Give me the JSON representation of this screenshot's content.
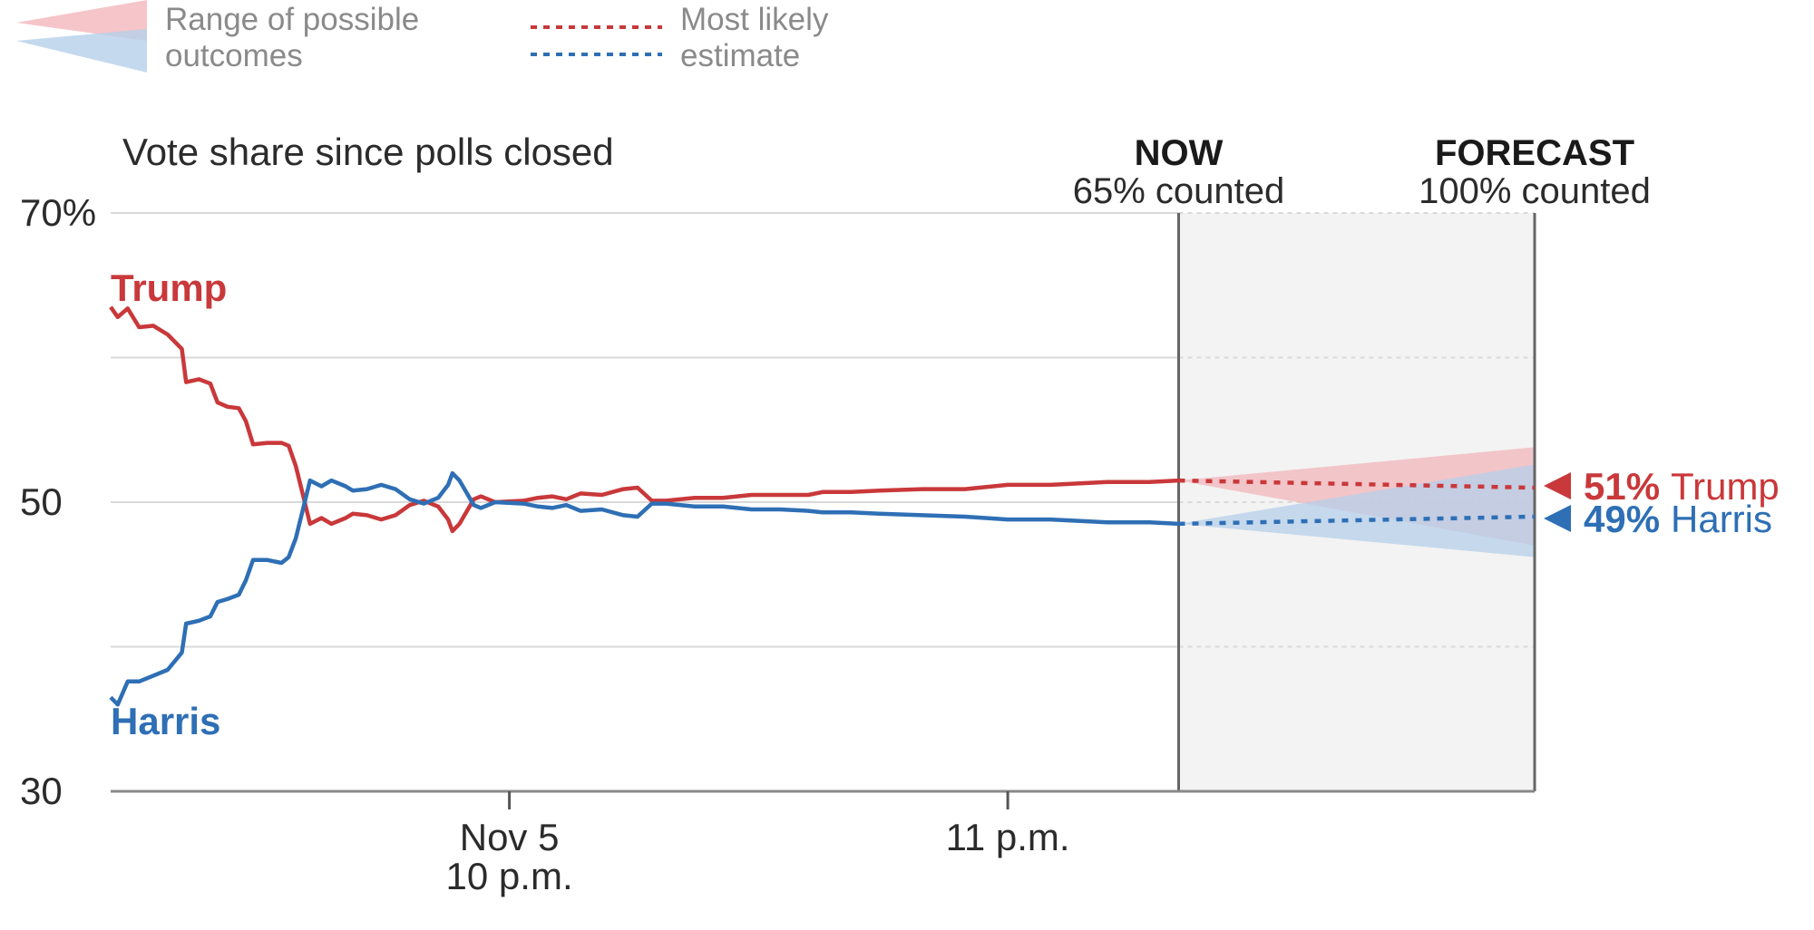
{
  "colors": {
    "trump": "#c9383a",
    "harris": "#2e6fb5",
    "trump_band": "#f2b6bb",
    "harris_band": "#b5cfea",
    "grid": "#d9d9d9",
    "axis": "#888888",
    "forecast_bg": "#f3f3f3"
  },
  "legend": {
    "range_line1": "Range of possible",
    "range_line2": "outcomes",
    "estimate_line1": "Most likely",
    "estimate_line2": "estimate"
  },
  "chart_data": {
    "type": "line",
    "title": "Vote share since polls closed",
    "ylim": [
      30,
      70
    ],
    "y_ticks": [
      {
        "value": 70,
        "label": "70%"
      },
      {
        "value": 50,
        "label": "50"
      },
      {
        "value": 30,
        "label": "30"
      }
    ],
    "x_ticks": [
      {
        "value": 0.28,
        "line1": "Nov 5",
        "line2": "10 p.m."
      },
      {
        "value": 0.63,
        "line1": "11 p.m.",
        "line2": ""
      }
    ],
    "grid": true,
    "phases": [
      {
        "value": 0.75,
        "head": "NOW",
        "sub": "65% counted"
      },
      {
        "value": 1.0,
        "head": "FORECAST",
        "sub": "100% counted"
      }
    ],
    "series": [
      {
        "name": "Trump",
        "key": "trump",
        "points": [
          [
            0,
            63.5
          ],
          [
            0.005,
            62.8
          ],
          [
            0.012,
            63.4
          ],
          [
            0.02,
            62.1
          ],
          [
            0.03,
            62.2
          ],
          [
            0.04,
            61.6
          ],
          [
            0.05,
            60.6
          ],
          [
            0.053,
            58.3
          ],
          [
            0.062,
            58.5
          ],
          [
            0.07,
            58.2
          ],
          [
            0.075,
            56.9
          ],
          [
            0.082,
            56.6
          ],
          [
            0.09,
            56.5
          ],
          [
            0.095,
            55.6
          ],
          [
            0.1,
            54.0
          ],
          [
            0.11,
            54.1
          ],
          [
            0.12,
            54.1
          ],
          [
            0.125,
            53.9
          ],
          [
            0.13,
            52.5
          ],
          [
            0.135,
            50.5
          ],
          [
            0.14,
            48.5
          ],
          [
            0.148,
            48.9
          ],
          [
            0.155,
            48.5
          ],
          [
            0.165,
            48.9
          ],
          [
            0.17,
            49.2
          ],
          [
            0.18,
            49.1
          ],
          [
            0.19,
            48.8
          ],
          [
            0.2,
            49.1
          ],
          [
            0.21,
            49.8
          ],
          [
            0.22,
            50.1
          ],
          [
            0.23,
            49.7
          ],
          [
            0.237,
            48.8
          ],
          [
            0.24,
            48.0
          ],
          [
            0.245,
            48.5
          ],
          [
            0.255,
            50.2
          ],
          [
            0.26,
            50.4
          ],
          [
            0.27,
            50.0
          ],
          [
            0.29,
            50.1
          ],
          [
            0.3,
            50.3
          ],
          [
            0.31,
            50.4
          ],
          [
            0.32,
            50.2
          ],
          [
            0.33,
            50.6
          ],
          [
            0.345,
            50.5
          ],
          [
            0.36,
            50.9
          ],
          [
            0.37,
            51.0
          ],
          [
            0.38,
            50.1
          ],
          [
            0.39,
            50.1
          ],
          [
            0.41,
            50.3
          ],
          [
            0.43,
            50.3
          ],
          [
            0.45,
            50.5
          ],
          [
            0.47,
            50.5
          ],
          [
            0.49,
            50.5
          ],
          [
            0.5,
            50.7
          ],
          [
            0.52,
            50.7
          ],
          [
            0.54,
            50.8
          ],
          [
            0.57,
            50.9
          ],
          [
            0.6,
            50.9
          ],
          [
            0.63,
            51.2
          ],
          [
            0.66,
            51.2
          ],
          [
            0.7,
            51.4
          ],
          [
            0.73,
            51.4
          ],
          [
            0.75,
            51.5
          ]
        ]
      },
      {
        "name": "Harris",
        "key": "harris",
        "points": [
          [
            0,
            36.5
          ],
          [
            0.005,
            36.0
          ],
          [
            0.012,
            37.6
          ],
          [
            0.02,
            37.6
          ],
          [
            0.03,
            38.0
          ],
          [
            0.04,
            38.4
          ],
          [
            0.05,
            39.6
          ],
          [
            0.053,
            41.6
          ],
          [
            0.062,
            41.8
          ],
          [
            0.07,
            42.1
          ],
          [
            0.075,
            43.1
          ],
          [
            0.082,
            43.3
          ],
          [
            0.09,
            43.6
          ],
          [
            0.095,
            44.6
          ],
          [
            0.1,
            46.0
          ],
          [
            0.11,
            46.0
          ],
          [
            0.12,
            45.8
          ],
          [
            0.125,
            46.2
          ],
          [
            0.13,
            47.5
          ],
          [
            0.135,
            49.5
          ],
          [
            0.14,
            51.5
          ],
          [
            0.148,
            51.1
          ],
          [
            0.155,
            51.5
          ],
          [
            0.165,
            51.1
          ],
          [
            0.17,
            50.8
          ],
          [
            0.18,
            50.9
          ],
          [
            0.19,
            51.2
          ],
          [
            0.2,
            50.9
          ],
          [
            0.21,
            50.2
          ],
          [
            0.22,
            49.9
          ],
          [
            0.23,
            50.3
          ],
          [
            0.237,
            51.2
          ],
          [
            0.24,
            52.0
          ],
          [
            0.245,
            51.5
          ],
          [
            0.255,
            49.8
          ],
          [
            0.26,
            49.6
          ],
          [
            0.27,
            50.0
          ],
          [
            0.29,
            49.9
          ],
          [
            0.3,
            49.7
          ],
          [
            0.31,
            49.6
          ],
          [
            0.32,
            49.8
          ],
          [
            0.33,
            49.4
          ],
          [
            0.345,
            49.5
          ],
          [
            0.36,
            49.1
          ],
          [
            0.37,
            49.0
          ],
          [
            0.38,
            49.9
          ],
          [
            0.39,
            49.9
          ],
          [
            0.41,
            49.7
          ],
          [
            0.43,
            49.7
          ],
          [
            0.45,
            49.5
          ],
          [
            0.47,
            49.5
          ],
          [
            0.49,
            49.4
          ],
          [
            0.5,
            49.3
          ],
          [
            0.52,
            49.3
          ],
          [
            0.54,
            49.2
          ],
          [
            0.57,
            49.1
          ],
          [
            0.6,
            49.0
          ],
          [
            0.63,
            48.8
          ],
          [
            0.66,
            48.8
          ],
          [
            0.7,
            48.6
          ],
          [
            0.73,
            48.6
          ],
          [
            0.75,
            48.5
          ]
        ]
      }
    ],
    "forecast": {
      "trump_estimate": 51.0,
      "harris_estimate": 49.0,
      "trump_range": [
        47.0,
        53.8
      ],
      "harris_range": [
        46.2,
        52.6
      ]
    },
    "end_labels": [
      {
        "key": "trump",
        "pct": "51%",
        "name": "Trump",
        "value": 51.0
      },
      {
        "key": "harris",
        "pct": "49%",
        "name": "Harris",
        "value": 49.0
      }
    ]
  }
}
